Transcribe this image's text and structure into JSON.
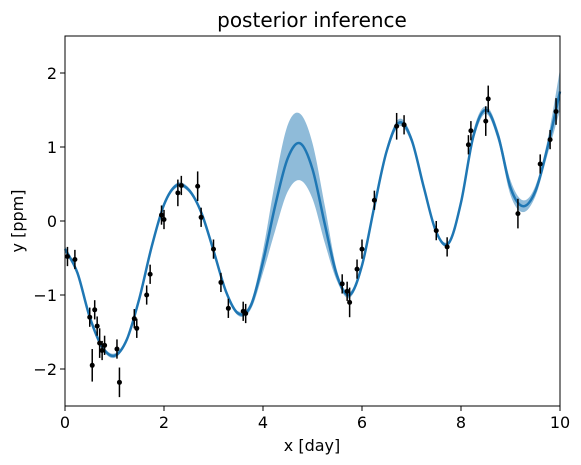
{
  "chart_data": {
    "type": "line",
    "title": "posterior inference",
    "xlabel": "x [day]",
    "ylabel": "y [ppm]",
    "xlim": [
      0,
      10
    ],
    "ylim": [
      -2.5,
      2.5
    ],
    "xticks": [
      0,
      2,
      4,
      6,
      8,
      10
    ],
    "yticks": [
      -2,
      -1,
      0,
      1,
      2
    ],
    "grid": false,
    "legend": "none",
    "colors": {
      "mean": "#1f77b4",
      "band": "#1f77b4",
      "points": "#000000"
    },
    "series": [
      {
        "type": "line",
        "x": [
          0,
          0.25,
          0.5,
          0.75,
          1.0,
          1.25,
          1.5,
          1.75,
          2.0,
          2.25,
          2.5,
          2.75,
          3.0,
          3.25,
          3.5,
          3.75,
          4.0,
          4.25,
          4.5,
          4.75,
          5.0,
          5.25,
          5.5,
          5.75,
          6.0,
          6.25,
          6.5,
          6.75,
          7.0,
          7.25,
          7.5,
          7.75,
          8.0,
          8.25,
          8.5,
          8.75,
          9.0,
          9.25,
          9.5,
          9.75,
          10.0
        ],
        "values": [
          -0.38,
          -0.7,
          -1.3,
          -1.7,
          -1.82,
          -1.6,
          -1.05,
          -0.35,
          0.22,
          0.48,
          0.42,
          0.12,
          -0.4,
          -0.95,
          -1.25,
          -1.15,
          -0.55,
          0.22,
          0.85,
          1.05,
          0.7,
          -0.05,
          -0.75,
          -1.0,
          -0.6,
          0.2,
          0.95,
          1.33,
          1.1,
          0.45,
          -0.15,
          -0.3,
          0.25,
          1.15,
          1.5,
          1.15,
          0.45,
          0.2,
          0.4,
          1.0,
          1.75
        ]
      },
      {
        "type": "band",
        "x": [
          0,
          0.25,
          0.5,
          0.75,
          1.0,
          1.25,
          1.5,
          1.75,
          2.0,
          2.25,
          2.5,
          2.75,
          3.0,
          3.25,
          3.5,
          3.75,
          4.0,
          4.25,
          4.5,
          4.75,
          5.0,
          5.25,
          5.5,
          5.75,
          6.0,
          6.25,
          6.5,
          6.75,
          7.0,
          7.25,
          7.5,
          7.75,
          8.0,
          8.25,
          8.5,
          8.75,
          9.0,
          9.25,
          9.5,
          9.75,
          10.0
        ],
        "lower": [
          -0.42,
          -0.73,
          -1.33,
          -1.73,
          -1.85,
          -1.63,
          -1.08,
          -0.38,
          0.19,
          0.45,
          0.39,
          0.09,
          -0.43,
          -0.98,
          -1.28,
          -1.2,
          -0.7,
          -0.12,
          0.4,
          0.55,
          0.3,
          -0.3,
          -0.82,
          -1.04,
          -0.64,
          0.16,
          0.9,
          1.28,
          1.05,
          0.41,
          -0.18,
          -0.33,
          0.2,
          1.08,
          1.45,
          1.08,
          0.35,
          0.12,
          0.33,
          0.9,
          1.5
        ],
        "upper": [
          -0.34,
          -0.67,
          -1.27,
          -1.67,
          -1.79,
          -1.57,
          -1.02,
          -0.32,
          0.25,
          0.51,
          0.45,
          0.15,
          -0.37,
          -0.92,
          -1.22,
          -1.1,
          -0.4,
          0.55,
          1.3,
          1.45,
          1.05,
          0.2,
          -0.68,
          -0.96,
          -0.56,
          0.24,
          1.0,
          1.38,
          1.15,
          0.49,
          -0.12,
          -0.27,
          0.3,
          1.22,
          1.55,
          1.22,
          0.55,
          0.28,
          0.47,
          1.1,
          2.05
        ]
      },
      {
        "type": "scatter",
        "x": [
          0.05,
          0.2,
          0.5,
          0.55,
          0.6,
          0.65,
          0.7,
          0.75,
          0.8,
          1.05,
          1.1,
          1.4,
          1.45,
          1.65,
          1.72,
          1.95,
          2.0,
          2.28,
          2.35,
          2.68,
          2.75,
          3.0,
          3.15,
          3.3,
          3.6,
          3.65,
          5.6,
          5.7,
          5.75,
          5.9,
          6.0,
          6.25,
          6.7,
          6.85,
          7.5,
          7.72,
          8.15,
          8.2,
          8.5,
          8.55,
          9.15,
          9.6,
          9.8,
          9.92
        ],
        "values": [
          -0.48,
          -0.52,
          -1.3,
          -1.95,
          -1.2,
          -1.42,
          -1.65,
          -1.75,
          -1.68,
          -1.73,
          -2.18,
          -1.32,
          -1.45,
          -1.0,
          -0.72,
          0.08,
          0.02,
          0.38,
          0.48,
          0.47,
          0.05,
          -0.38,
          -0.83,
          -1.18,
          -1.22,
          -1.25,
          -0.85,
          -0.95,
          -1.1,
          -0.65,
          -0.38,
          0.28,
          1.28,
          1.3,
          -0.13,
          -0.35,
          1.03,
          1.22,
          1.35,
          1.65,
          0.1,
          0.77,
          1.1,
          1.48
        ],
        "errors": [
          0.13,
          0.13,
          0.13,
          0.22,
          0.13,
          0.13,
          0.2,
          0.13,
          0.13,
          0.13,
          0.2,
          0.13,
          0.13,
          0.13,
          0.13,
          0.13,
          0.13,
          0.18,
          0.13,
          0.2,
          0.13,
          0.13,
          0.13,
          0.13,
          0.13,
          0.13,
          0.13,
          0.13,
          0.2,
          0.13,
          0.13,
          0.13,
          0.18,
          0.13,
          0.13,
          0.13,
          0.13,
          0.13,
          0.2,
          0.18,
          0.2,
          0.13,
          0.13,
          0.18
        ]
      }
    ]
  }
}
